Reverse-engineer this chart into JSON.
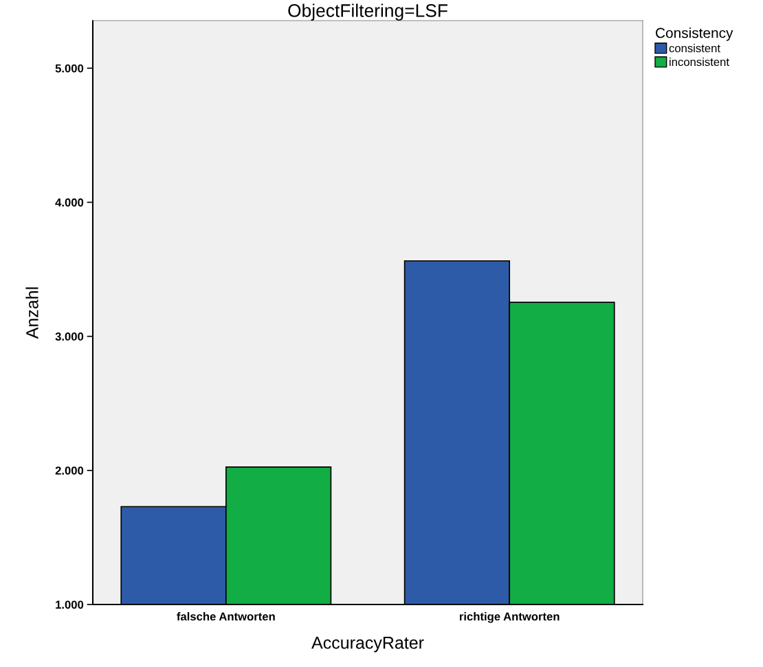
{
  "chart_data": {
    "type": "bar",
    "title": "ObjectFiltering=LSF",
    "xlabel": "AccuracyRater",
    "ylabel": "Anzahl",
    "legend_title": "Consistency",
    "categories": [
      "falsche Antworten",
      "richtige Antworten"
    ],
    "series": [
      {
        "name": "consistent",
        "color": "#2e5ba8",
        "values": [
          1730,
          3563
        ]
      },
      {
        "name": "inconsistent",
        "color": "#12ad44",
        "values": [
          2025,
          3254
        ]
      }
    ],
    "ylim": [
      1000,
      5355
    ],
    "yticks": [
      {
        "value": 1000,
        "label": "1.000"
      },
      {
        "value": 2000,
        "label": "2.000"
      },
      {
        "value": 3000,
        "label": "3.000"
      },
      {
        "value": 4000,
        "label": "4.000"
      },
      {
        "value": 5000,
        "label": "5.000"
      }
    ],
    "grid": false,
    "legend": "top right"
  }
}
